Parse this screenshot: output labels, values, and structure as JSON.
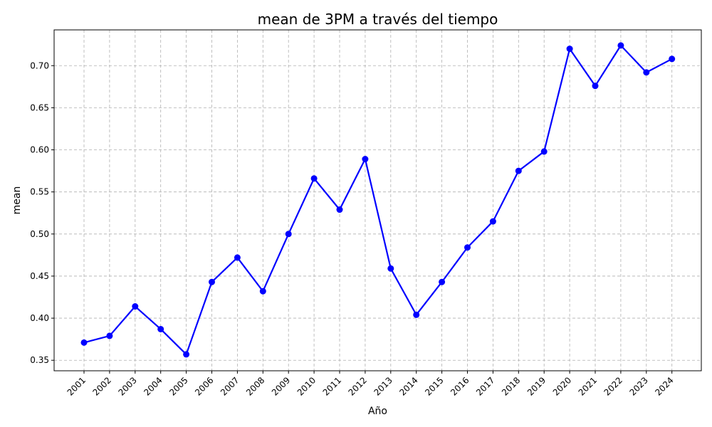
{
  "chart_data": {
    "type": "line",
    "title": "mean de 3PM a través del tiempo",
    "xlabel": "Año",
    "ylabel": "mean",
    "categories": [
      "2001",
      "2002",
      "2003",
      "2004",
      "2005",
      "2006",
      "2007",
      "2008",
      "2009",
      "2010",
      "2011",
      "2012",
      "2013",
      "2014",
      "2015",
      "2016",
      "2017",
      "2018",
      "2019",
      "2020",
      "2021",
      "2022",
      "2023",
      "2024"
    ],
    "series": [
      {
        "values": [
          0.371,
          0.379,
          0.414,
          0.387,
          0.357,
          0.443,
          0.472,
          0.432,
          0.5,
          0.566,
          0.529,
          0.589,
          0.459,
          0.404,
          0.443,
          0.484,
          0.515,
          0.575,
          0.598,
          0.72,
          0.676,
          0.724,
          0.692,
          0.708
        ],
        "color": "#0000ff"
      }
    ],
    "ylim": [
      0.3375,
      0.7425
    ],
    "yticks": [
      0.35,
      0.4,
      0.45,
      0.5,
      0.55,
      0.6,
      0.65,
      0.7
    ],
    "ytick_labels": [
      "0.35",
      "0.40",
      "0.45",
      "0.50",
      "0.55",
      "0.60",
      "0.65",
      "0.70"
    ],
    "grid": true,
    "grid_color": "#b0b0b0"
  }
}
